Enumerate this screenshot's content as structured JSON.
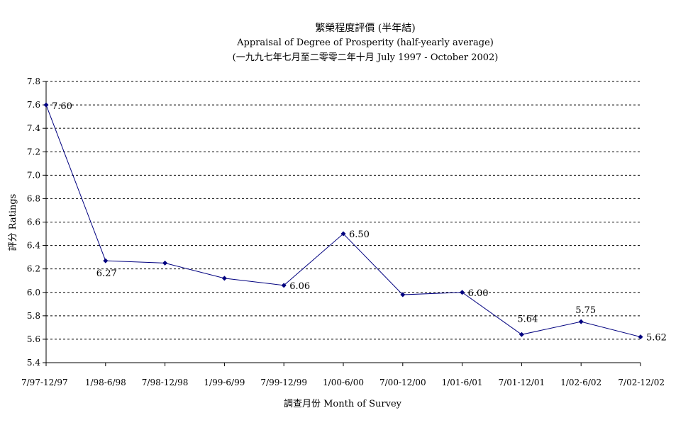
{
  "chart_data": {
    "type": "line",
    "title": "繁榮程度評價 (半年結)",
    "subtitle": "Appraisal of Degree of Prosperity (half-yearly average)",
    "subtitle2": "(一九九七年七月至二零零二年十月 July 1997 - October 2002)",
    "xlabel": "調查月份 Month of Survey",
    "ylabel": "評分 Ratings",
    "ylim": [
      5.4,
      7.8
    ],
    "yticks": [
      "5.4",
      "5.6",
      "5.8",
      "6.0",
      "6.2",
      "6.4",
      "6.6",
      "6.8",
      "7.0",
      "7.2",
      "7.4",
      "7.6",
      "7.8"
    ],
    "categories": [
      "7/97-12/97",
      "1/98-6/98",
      "7/98-12/98",
      "1/99-6/99",
      "7/99-12/99",
      "1/00-6/00",
      "7/00-12/00",
      "1/01-6/01",
      "7/01-12/01",
      "1/02-6/02",
      "7/02-12/02"
    ],
    "values": [
      7.6,
      6.27,
      6.25,
      6.12,
      6.06,
      6.5,
      5.98,
      6.0,
      5.64,
      5.75,
      5.62
    ],
    "data_labels": [
      "7.60",
      "6.27",
      "",
      "",
      "6.06",
      "6.50",
      "",
      "6.00",
      "5.64",
      "5.75",
      "5.62"
    ],
    "grid": true,
    "line_color": "#00007f"
  }
}
